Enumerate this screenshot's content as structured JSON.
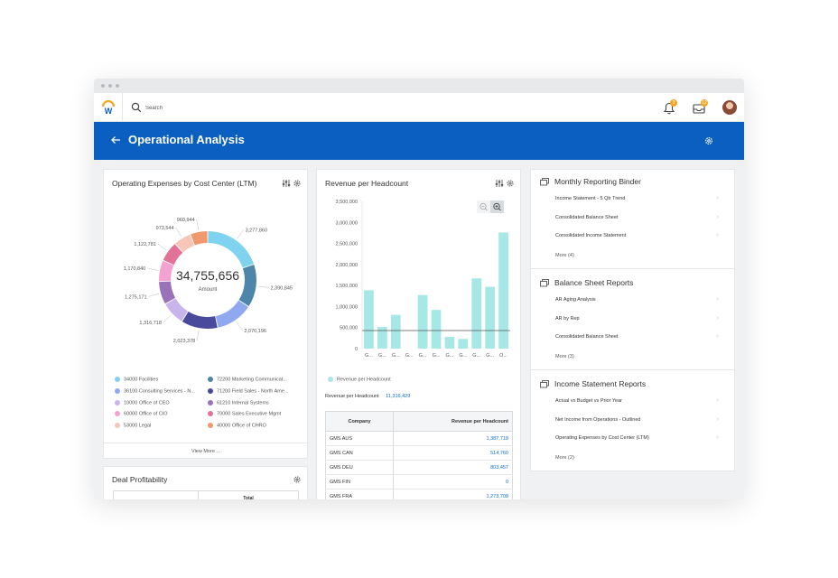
{
  "app": {
    "search_placeholder": "Search",
    "notification_count": "3",
    "inbox_count": "12",
    "page_title": "Operational Analysis",
    "icons": [
      "workday-logo-icon",
      "search-icon",
      "bell-icon",
      "inbox-icon",
      "user-avatar",
      "back-arrow-icon",
      "gear-icon"
    ]
  },
  "colors": {
    "header_blue": "#0b5fc0",
    "link_blue": "#0b6bd4",
    "bar_teal": "#a6e8e5",
    "badge_orange": "#f5a623"
  },
  "opex": {
    "title": "Operating Expenses by Cost Center (LTM)",
    "center_value": "34,755,656",
    "center_label": "Amount",
    "view_more": "View More ...",
    "legend": [
      {
        "label": "34000 Facilities",
        "color": "#7fd3ee"
      },
      {
        "label": "72200 Marketing Communicat...",
        "color": "#4d86aa"
      },
      {
        "label": "36100 Consulting Services - N...",
        "color": "#8fa8f0"
      },
      {
        "label": "71200 Field Sales - North Ame...",
        "color": "#4a4a9c"
      },
      {
        "label": "10000 Office of CEO",
        "color": "#c9b4ec"
      },
      {
        "label": "61210 Internal Systems",
        "color": "#9a72b8"
      },
      {
        "label": "60000 Office of CIO",
        "color": "#f4a3d0"
      },
      {
        "label": "70000 Sales Executive Mgmt",
        "color": "#e27396"
      },
      {
        "label": "53000 Legal",
        "color": "#f7c6b8"
      },
      {
        "label": "40000 Office of CHRO",
        "color": "#f2986f"
      }
    ]
  },
  "chart_data": [
    {
      "type": "pie",
      "title": "Operating Expenses by Cost Center (LTM)",
      "total": 34755656,
      "slices": [
        {
          "label": "34000 Facilities",
          "value": 3277860,
          "display": "3,277,860"
        },
        {
          "label": "72200 Marketing Communications",
          "value": 2390845,
          "display": "2,390,845"
        },
        {
          "label": "36100 Consulting Services",
          "value": 2070196,
          "display": "2,070,196"
        },
        {
          "label": "71200 Field Sales",
          "value": 2023378,
          "display": "2,023,378"
        },
        {
          "label": "10000 Office of CEO",
          "value": 1316718,
          "display": "1,316,718"
        },
        {
          "label": "61210 Internal Systems",
          "value": 1275171,
          "display": "1,275,171"
        },
        {
          "label": "60000 Office of CIO",
          "value": 1170840,
          "display": "1,170,840"
        },
        {
          "label": "70000 Sales Executive Mgmt",
          "value": 1122781,
          "display": "1,122,781"
        },
        {
          "label": "53000 Legal",
          "value": 973544,
          "display": "973,544"
        },
        {
          "label": "40000 Office of CHRO",
          "value": 960944,
          "display": "960,944"
        }
      ]
    },
    {
      "type": "bar",
      "title": "Revenue per Headcount",
      "categories": [
        "G...",
        "G...",
        "G...",
        "G...",
        "G...",
        "G...",
        "G...",
        "G...",
        "G...",
        "G...",
        "O..."
      ],
      "series": [
        {
          "name": "Revenue per Headcount",
          "values": [
            1387718,
            514760,
            803457,
            0,
            1273708,
            920000,
            280000,
            230000,
            1670000,
            1470000,
            2760000
          ]
        }
      ],
      "reference_line": 430000,
      "ylim": [
        0,
        3500000
      ],
      "yticks": [
        "0",
        "500,000",
        "1,000,000",
        "1,500,000",
        "2,000,000",
        "2,500,000",
        "3,000,000",
        "3,500,000"
      ],
      "xlabel": "",
      "ylabel": ""
    }
  ],
  "revenue": {
    "title": "Revenue per Headcount",
    "legend_label": "Revenue per Headcount",
    "summary_label": "Revenue per Headcount",
    "summary_value": "11,316,429",
    "table_headers": [
      "Company",
      "Revenue per Headcount"
    ],
    "rows": [
      {
        "company": "GMS AUS",
        "value": "1,387,718"
      },
      {
        "company": "GMS CAN",
        "value": "514,760"
      },
      {
        "company": "GMS DEU",
        "value": "803,457"
      },
      {
        "company": "GMS FIN",
        "value": "0"
      },
      {
        "company": "GMS FRA",
        "value": "1,273,708"
      }
    ]
  },
  "deal": {
    "title": "Deal Profitability",
    "col_total": "Total"
  },
  "reports": {
    "sections": [
      {
        "title": "Monthly Reporting Binder",
        "links": [
          "Income Statement - 5 Qtr Trend",
          "Consolidated Balance Sheet",
          "Consolidated Income Statement"
        ],
        "more": "More (4)"
      },
      {
        "title": "Balance Sheet Reports",
        "links": [
          "AR Aging Analysis",
          "AR by Rep",
          "Consolidated Balance Sheet"
        ],
        "more": "More (3)"
      },
      {
        "title": "Income Statement Reports",
        "links": [
          "Actual vs Budget vs Prior Year",
          "Net Income from Operations - Outlined",
          "Operating Expenses by Cost Center (LTM)"
        ],
        "more": "More (2)"
      }
    ]
  }
}
